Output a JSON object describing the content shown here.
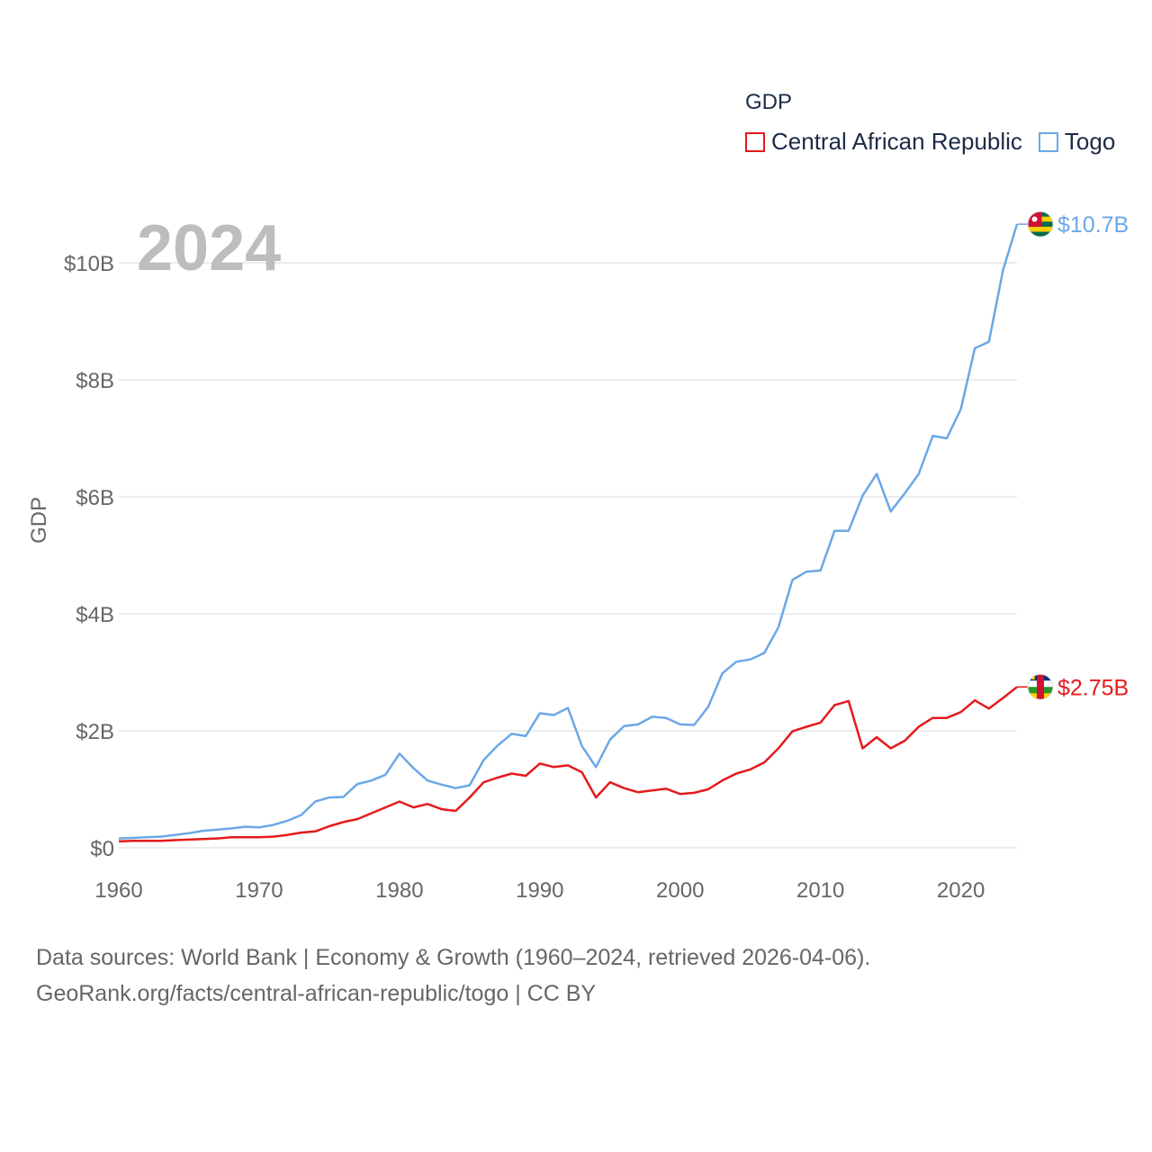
{
  "legend": {
    "title": "GDP",
    "items": [
      {
        "name": "Central African Republic",
        "color": "#e41a1c"
      },
      {
        "name": "Togo",
        "color": "#6aa8e6"
      }
    ]
  },
  "footer": {
    "line1": "Data sources: World Bank | Economy & Growth (1960–2024, retrieved 2026-04-06).",
    "line2": "GeoRank.org/facts/central-african-republic/togo | CC BY"
  },
  "chart_data": {
    "type": "line",
    "title": "GDP",
    "current_year_label": "2024",
    "xlabel": "",
    "ylabel": "GDP",
    "xlim": [
      1960,
      2024
    ],
    "ylim": [
      0,
      10
    ],
    "y_units": "billions USD",
    "grid": true,
    "legend_position": "top-right",
    "x_ticks": [
      1960,
      1970,
      1980,
      1990,
      2000,
      2010,
      2020
    ],
    "x_tick_labels": [
      "1960",
      "1970",
      "1980",
      "1990",
      "2000",
      "2010",
      "2020"
    ],
    "y_ticks": [
      0,
      2,
      4,
      6,
      8,
      10
    ],
    "y_tick_labels": [
      "$0",
      "$2B",
      "$4B",
      "$6B",
      "$8B",
      "$10B"
    ],
    "x": [
      1960,
      1961,
      1962,
      1963,
      1964,
      1965,
      1966,
      1967,
      1968,
      1969,
      1970,
      1971,
      1972,
      1973,
      1974,
      1975,
      1976,
      1977,
      1978,
      1979,
      1980,
      1981,
      1982,
      1983,
      1984,
      1985,
      1986,
      1987,
      1988,
      1989,
      1990,
      1991,
      1992,
      1993,
      1994,
      1995,
      1996,
      1997,
      1998,
      1999,
      2000,
      2001,
      2002,
      2003,
      2004,
      2005,
      2006,
      2007,
      2008,
      2009,
      2010,
      2011,
      2012,
      2013,
      2014,
      2015,
      2016,
      2017,
      2018,
      2019,
      2020,
      2021,
      2022,
      2023,
      2024
    ],
    "series": [
      {
        "name": "Central African Republic",
        "color": "#e41a1c",
        "end_label": "$2.75B",
        "values": [
          0.11,
          0.12,
          0.12,
          0.12,
          0.13,
          0.14,
          0.15,
          0.16,
          0.18,
          0.18,
          0.18,
          0.19,
          0.22,
          0.26,
          0.28,
          0.37,
          0.44,
          0.49,
          0.59,
          0.69,
          0.79,
          0.69,
          0.75,
          0.66,
          0.63,
          0.86,
          1.12,
          1.2,
          1.27,
          1.23,
          1.44,
          1.38,
          1.41,
          1.29,
          0.86,
          1.12,
          1.02,
          0.95,
          0.98,
          1.01,
          0.92,
          0.94,
          1.0,
          1.15,
          1.27,
          1.34,
          1.46,
          1.7,
          1.99,
          2.07,
          2.14,
          2.44,
          2.51,
          1.7,
          1.89,
          1.7,
          1.83,
          2.07,
          2.22,
          2.22,
          2.32,
          2.52,
          2.38,
          2.56,
          2.75
        ]
      },
      {
        "name": "Togo",
        "color": "#6aa8e6",
        "end_label": "$10.7B",
        "values": [
          0.16,
          0.17,
          0.18,
          0.19,
          0.22,
          0.25,
          0.29,
          0.31,
          0.33,
          0.36,
          0.35,
          0.39,
          0.46,
          0.56,
          0.79,
          0.86,
          0.87,
          1.09,
          1.15,
          1.25,
          1.61,
          1.36,
          1.15,
          1.08,
          1.02,
          1.07,
          1.5,
          1.75,
          1.95,
          1.91,
          2.3,
          2.27,
          2.39,
          1.74,
          1.38,
          1.85,
          2.08,
          2.11,
          2.24,
          2.22,
          2.11,
          2.1,
          2.41,
          2.98,
          3.18,
          3.22,
          3.33,
          3.77,
          4.58,
          4.72,
          4.74,
          5.42,
          5.42,
          6.02,
          6.39,
          5.75,
          6.06,
          6.39,
          7.04,
          7.0,
          7.5,
          8.54,
          8.65,
          9.87,
          10.66
        ]
      }
    ]
  }
}
